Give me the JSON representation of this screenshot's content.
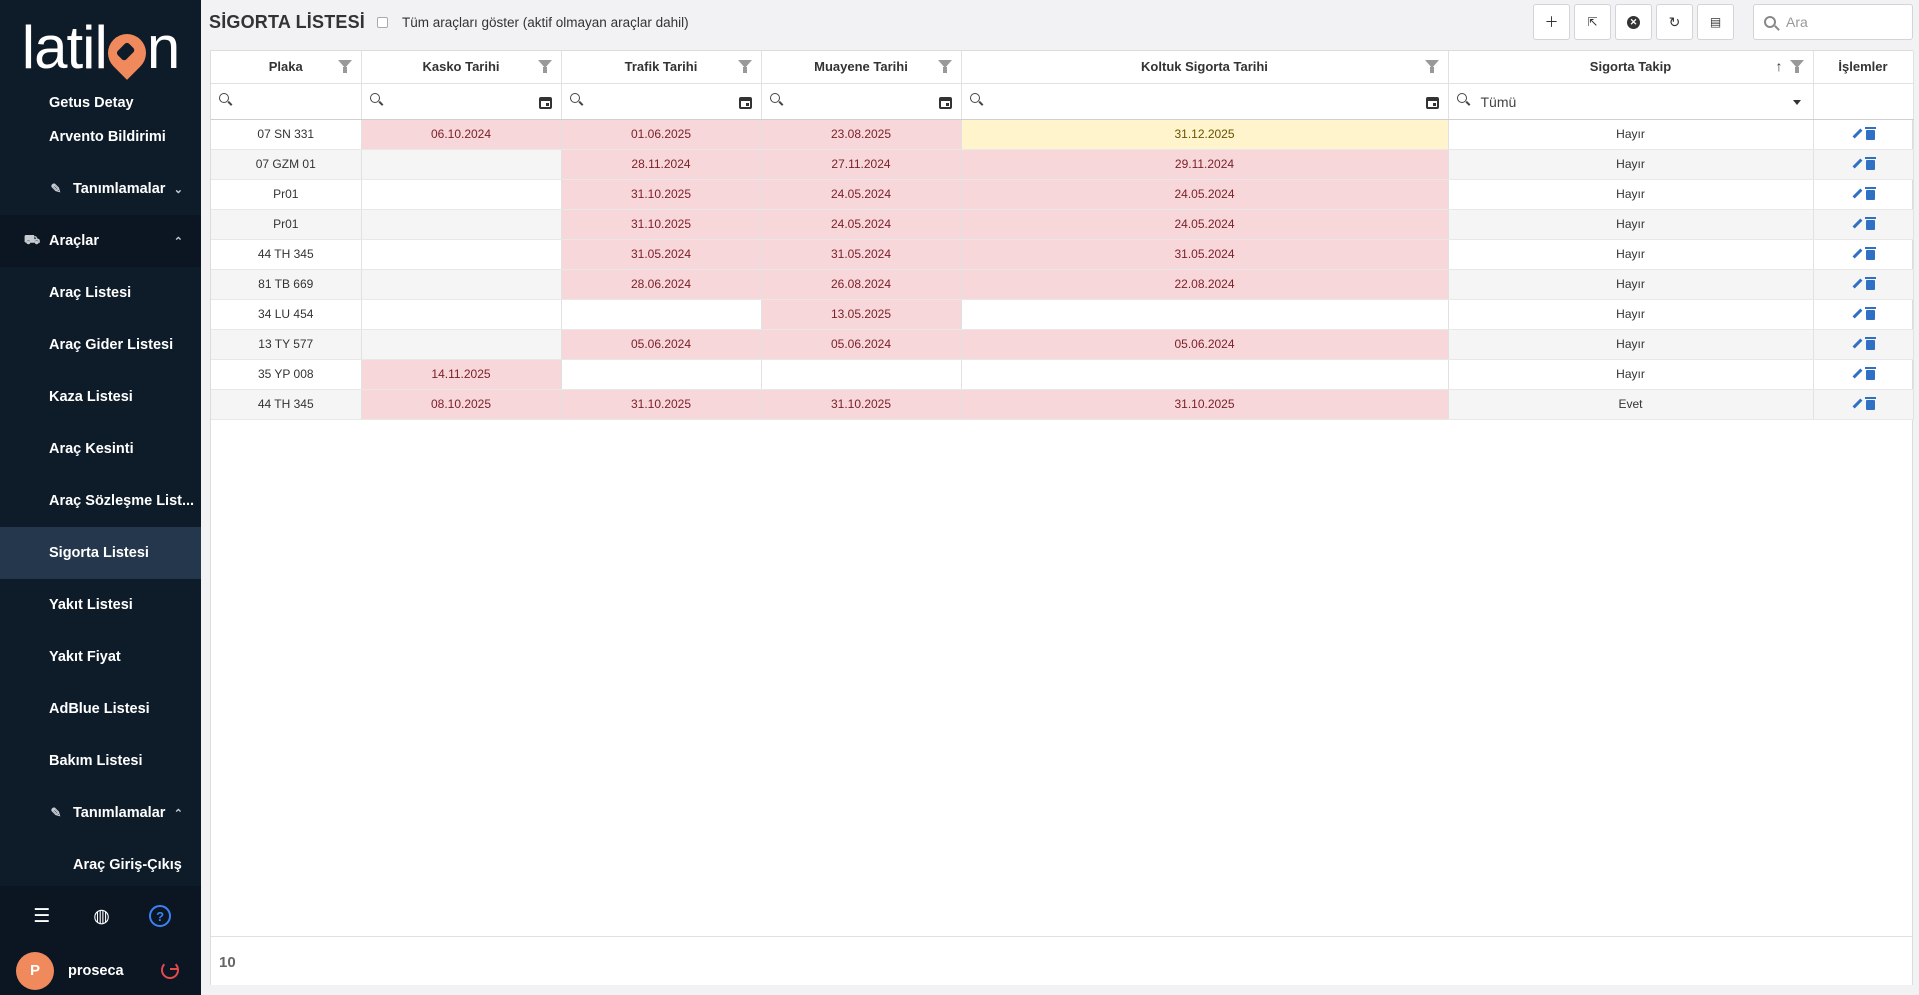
{
  "logo": {
    "text_before": "latil",
    "text_after": "n"
  },
  "sidebar": {
    "items": [
      {
        "label": "Getus Detay",
        "type": "cut"
      },
      {
        "label": "Arvento Bildirimi",
        "type": "item"
      },
      {
        "label": "Tanımlamalar",
        "type": "group",
        "chevron": "⌄"
      },
      {
        "label": "Araçlar",
        "type": "section",
        "chevron": "⌃"
      },
      {
        "label": "Araç Listesi",
        "type": "item"
      },
      {
        "label": "Araç Gider Listesi",
        "type": "item"
      },
      {
        "label": "Kaza Listesi",
        "type": "item"
      },
      {
        "label": "Araç Kesinti",
        "type": "item"
      },
      {
        "label": "Araç Sözleşme List...",
        "type": "item"
      },
      {
        "label": "Sigorta Listesi",
        "type": "item",
        "active": true
      },
      {
        "label": "Yakıt Listesi",
        "type": "item"
      },
      {
        "label": "Yakıt Fiyat",
        "type": "item"
      },
      {
        "label": "AdBlue Listesi",
        "type": "item"
      },
      {
        "label": "Bakım Listesi",
        "type": "item"
      },
      {
        "label": "Tanımlamalar",
        "type": "group",
        "chevron": "⌃"
      },
      {
        "label": "Araç Giriş-Çıkış",
        "type": "sub2"
      }
    ],
    "footer": {
      "user_initial": "P",
      "username": "proseca"
    }
  },
  "toolbar": {
    "title": "SİGORTA LİSTESİ",
    "show_all_label": "Tüm araçları göster (aktif olmayan araçlar dahil)",
    "search_placeholder": "Ara"
  },
  "table": {
    "columns": [
      "Plaka",
      "Kasko Tarihi",
      "Trafik Tarihi",
      "Muayene Tarihi",
      "Koltuk Sigorta Tarihi",
      "Sigorta Takip",
      "İşlemler"
    ],
    "takip_filter_value": "Tümü",
    "rows": [
      {
        "plaka": "07 SN 331",
        "kasko": "06.10.2024",
        "trafik": "01.06.2025",
        "muayene": "23.08.2025",
        "koltuk": "31.12.2025",
        "takip": "Hayır",
        "koltuk_status": "yellow"
      },
      {
        "plaka": "07 GZM 01",
        "kasko": "",
        "trafik": "28.11.2024",
        "muayene": "27.11.2024",
        "koltuk": "29.11.2024",
        "takip": "Hayır"
      },
      {
        "plaka": "Pr01",
        "kasko": "",
        "trafik": "31.10.2025",
        "muayene": "24.05.2024",
        "koltuk": "24.05.2024",
        "takip": "Hayır"
      },
      {
        "plaka": "Pr01",
        "kasko": "",
        "trafik": "31.10.2025",
        "muayene": "24.05.2024",
        "koltuk": "24.05.2024",
        "takip": "Hayır"
      },
      {
        "plaka": "44 TH 345",
        "kasko": "",
        "trafik": "31.05.2024",
        "muayene": "31.05.2024",
        "koltuk": "31.05.2024",
        "takip": "Hayır"
      },
      {
        "plaka": "81 TB 669",
        "kasko": "",
        "trafik": "28.06.2024",
        "muayene": "26.08.2024",
        "koltuk": "22.08.2024",
        "takip": "Hayır"
      },
      {
        "plaka": "34 LU 454",
        "kasko": "",
        "trafik": "",
        "muayene": "13.05.2025",
        "koltuk": "",
        "takip": "Hayır"
      },
      {
        "plaka": "13 TY 577",
        "kasko": "",
        "trafik": "05.06.2024",
        "muayene": "05.06.2024",
        "koltuk": "05.06.2024",
        "takip": "Hayır"
      },
      {
        "plaka": "35 YP 008",
        "kasko": "14.11.2025",
        "trafik": "",
        "muayene": "",
        "koltuk": "",
        "takip": "Hayır"
      },
      {
        "plaka": "44 TH 345",
        "kasko": "08.10.2025",
        "trafik": "31.10.2025",
        "muayene": "31.10.2025",
        "koltuk": "31.10.2025",
        "takip": "Evet"
      }
    ],
    "record_count": "10"
  },
  "colors": {
    "sidebar_bg": "#0e1b28",
    "active_item": "#24374c",
    "expired_cell": "#f8d7da",
    "warning_cell": "#fff4cc",
    "accent": "#f08a5d",
    "action_icon": "#2f6fc4"
  }
}
